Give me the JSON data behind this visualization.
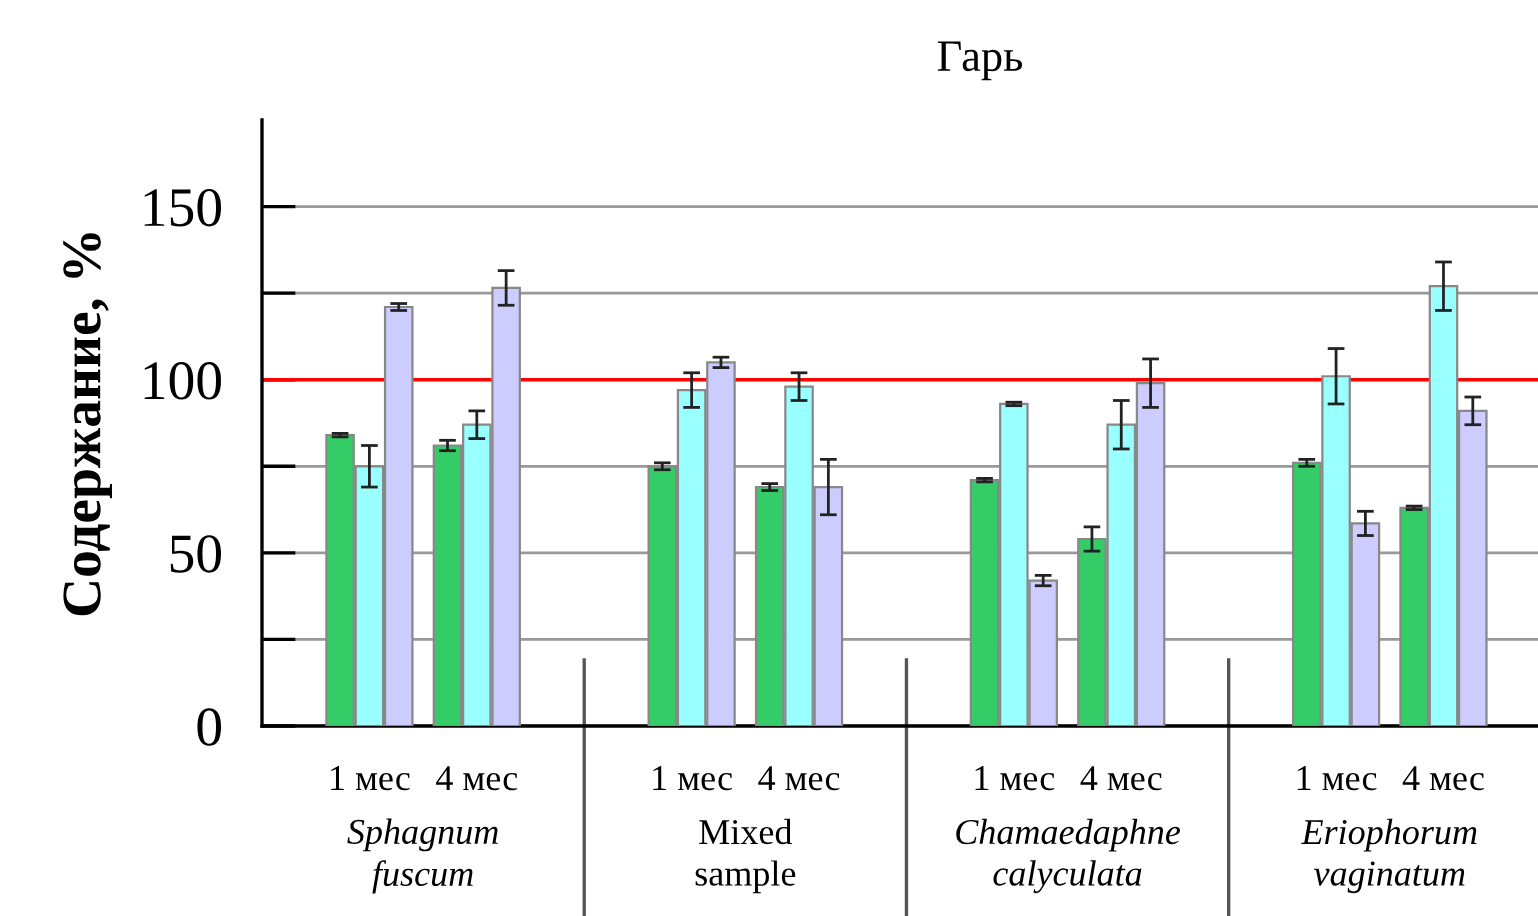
{
  "chart_data": {
    "type": "bar",
    "title": "Гарь",
    "ylabel": "Содержание, %",
    "categories": [
      "1 мес",
      "4 мес",
      "1 мес",
      "4 мес",
      "1 мес",
      "4 мес",
      "1 мес",
      "4 мес"
    ],
    "series": [
      {
        "color": "#33cc66",
        "values": [
          84,
          81,
          75,
          69,
          71,
          54,
          76,
          63
        ],
        "errors": [
          0.5,
          1.5,
          1,
          1,
          0.5,
          3.5,
          1,
          0.5
        ]
      },
      {
        "color": "#99ffff",
        "values": [
          75,
          87,
          97,
          98,
          93,
          87,
          101,
          127
        ],
        "errors": [
          6,
          4,
          5,
          4,
          0.5,
          7,
          8,
          7
        ]
      },
      {
        "color": "#ccccff",
        "values": [
          121,
          126.5,
          105,
          69,
          42,
          99,
          58.5,
          91
        ],
        "errors": [
          1,
          5,
          1.5,
          8,
          1.5,
          7,
          3.5,
          4
        ]
      }
    ],
    "annotations": [
      "Sphagnum\nfuscum",
      "Mixed\nsample",
      "Chamaedaphne\ncalyculata",
      "Eriophorum\nvaginatum"
    ],
    "ylim": [
      0,
      175
    ],
    "yticks": [
      0,
      {
        "value": 25,
        "label": null
      },
      50,
      {
        "value": 75,
        "label": null
      },
      100,
      {
        "value": 125,
        "label": null
      },
      150
    ],
    "ref_lines": [
      {
        "axis": "y",
        "value": 100,
        "color": "#ff0000"
      }
    ],
    "grid": "y",
    "legend": false
  }
}
